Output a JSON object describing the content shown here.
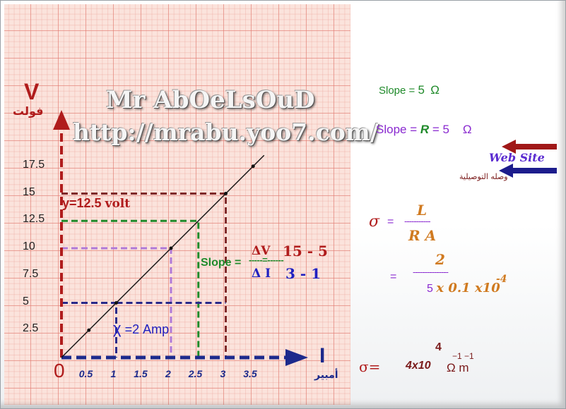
{
  "watermark": {
    "name": "Mr AbOeLsOuD",
    "url": "http://mrabu.yoo7.com/"
  },
  "axes": {
    "y_symbol": "V",
    "y_unit_ar": "فولت",
    "x_symbol": "I",
    "x_unit_ar": "أمبير",
    "origin": "0",
    "y_ticks": [
      "2.5",
      "5",
      "7.5",
      "10",
      "12.5",
      "15",
      "17.5"
    ],
    "x_ticks": [
      "0.5",
      "1",
      "1.5",
      "2",
      "2.5",
      "3",
      "3.5"
    ]
  },
  "graph_labels": {
    "y_value": "y=12.5",
    "y_value_unit": "volt",
    "x_value_symbol": "χ",
    "x_value": "=2 Amp",
    "slope_label": "Slope =",
    "slope_dashes": "-----=------",
    "delta_v": "ΔV",
    "v_diff": "15 - 5",
    "delta_i": "Δ I",
    "i_diff": "3   - 1"
  },
  "right_panel": {
    "slope1_prefix": "Slope =",
    "slope1_value": "5",
    "ohm": "Ω",
    "slope2_prefix": "Slope =",
    "slope2_r": "R",
    "slope2_value": "= 5",
    "website": "Web Site",
    "conductivity_ar": "وصله التوصيلية",
    "sigma": "σ",
    "sigma_eq": "=",
    "frac1_num": "L",
    "frac1_bar": "-----------",
    "frac1_den": "R  A",
    "eq2": "=",
    "frac2_num": "2",
    "frac2_bar": "---------------",
    "frac2_den_a": "5",
    "frac2_den_b": "x 0.1 x10",
    "frac2_exp": "-4",
    "result_sigma": "σ=",
    "result_exp_top": "4",
    "result_base": "4x10",
    "result_unit_exp": "−1  −1",
    "result_unit": "Ω  m"
  },
  "chart_data": {
    "type": "line",
    "xlabel": "I",
    "ylabel": "V",
    "xlim": [
      0,
      4
    ],
    "ylim": [
      0,
      20
    ],
    "series": [
      {
        "x": [
          0,
          0.5,
          1,
          2,
          3,
          3.5
        ],
        "y": [
          0,
          2.5,
          5,
          10,
          15,
          17.5
        ]
      }
    ],
    "x_ticks": [
      0.5,
      1,
      1.5,
      2,
      2.5,
      3,
      3.5
    ],
    "y_ticks": [
      2.5,
      5,
      7.5,
      10,
      12.5,
      15,
      17.5
    ],
    "marked_points": [
      [
        0.5,
        2.5
      ],
      [
        1,
        5
      ],
      [
        2,
        10
      ],
      [
        3,
        15
      ],
      [
        3.5,
        17.5
      ]
    ],
    "guide_lines": [
      {
        "color": "#7f2a2a",
        "x": 3,
        "y": 15
      },
      {
        "color": "#1f8a2a",
        "x": 2.5,
        "y": 12.5
      },
      {
        "color": "#b07ad8",
        "x": 2,
        "y": 10
      },
      {
        "color": "#2a2a8a",
        "x": 1,
        "y": 5
      }
    ],
    "colors": {
      "y_axis": "#b01c1c",
      "x_axis": "#1c2a8c",
      "line": "#111111"
    }
  }
}
